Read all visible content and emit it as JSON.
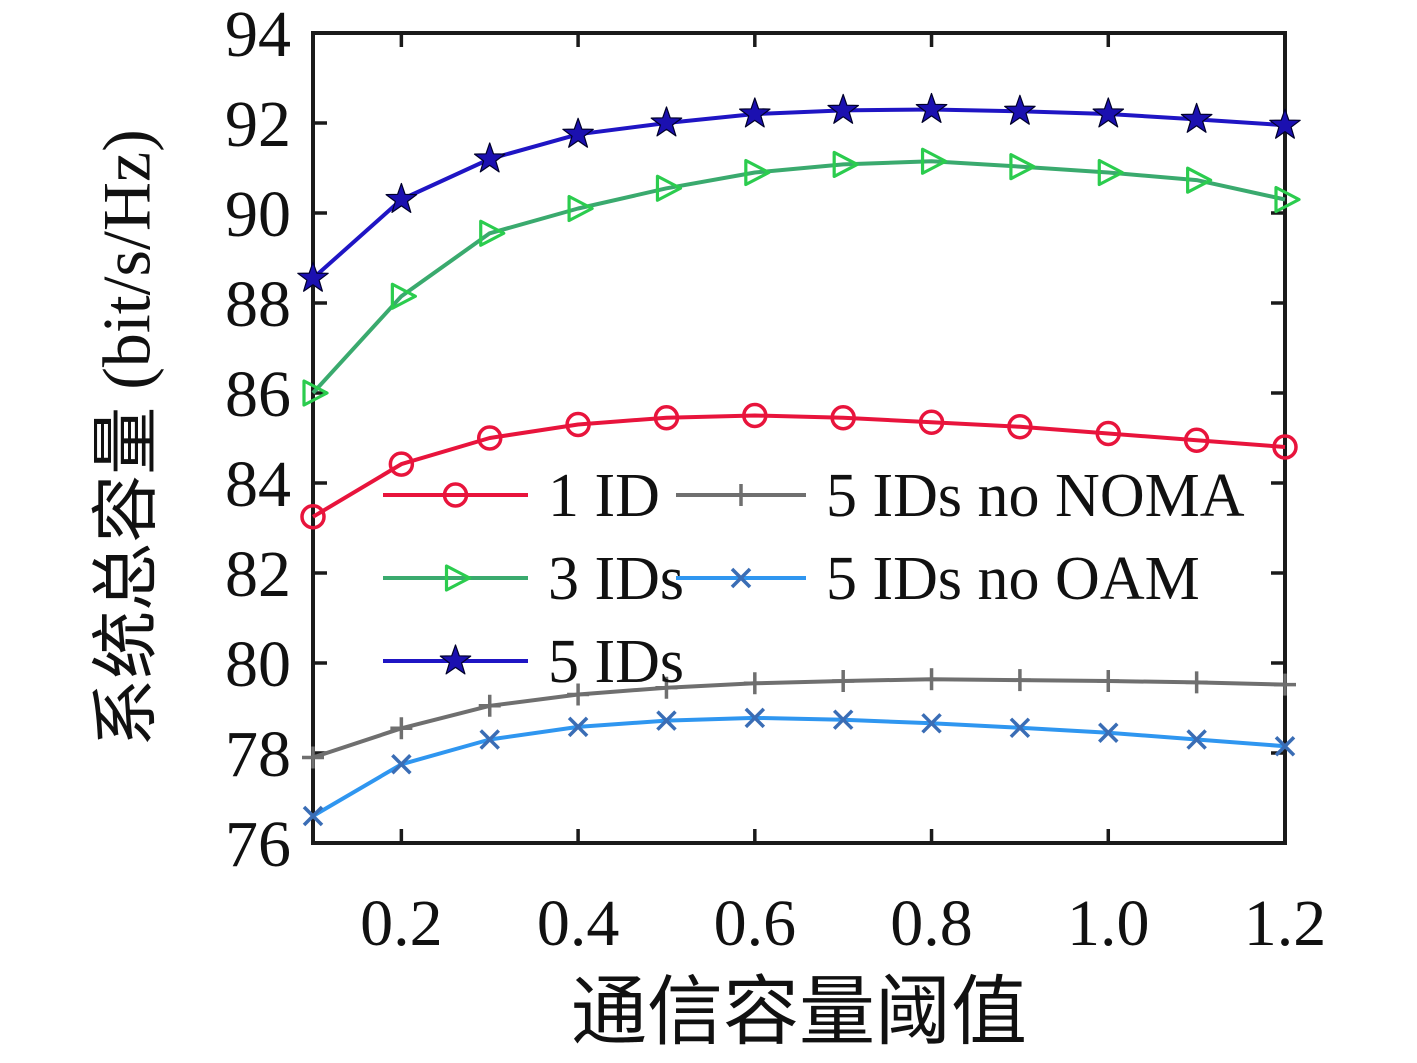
{
  "figure": {
    "xlabel": "通信容量阈值",
    "ylabel": "系统总容量 (bit/s/Hz)"
  },
  "chart_data": {
    "type": "line",
    "title": "",
    "xlabel": "通信容量阈值",
    "ylabel": "系统总容量 (bit/s/Hz)",
    "x": [
      0.1,
      0.2,
      0.3,
      0.4,
      0.5,
      0.6,
      0.7,
      0.8,
      0.9,
      1.0,
      1.1,
      1.2
    ],
    "xlim": [
      0.1,
      1.2
    ],
    "ylim": [
      76,
      94
    ],
    "xticks": {
      "values": [
        0.2,
        0.4,
        0.6,
        0.8,
        1.0,
        1.2
      ],
      "labels": [
        "0.2",
        "0.4",
        "0.6",
        "0.8",
        "1.0",
        "1.2"
      ]
    },
    "yticks": {
      "values": [
        76,
        78,
        80,
        82,
        84,
        86,
        88,
        90,
        92,
        94
      ],
      "labels": [
        "76",
        "78",
        "80",
        "82",
        "84",
        "86",
        "88",
        "90",
        "92",
        "94"
      ]
    },
    "grid": false,
    "frame": true,
    "legend_position": "inside-center",
    "series": [
      {
        "name": "1 ID",
        "marker": "circle",
        "color": "#e8143c",
        "marker_color": "#e8143c",
        "values": [
          83.25,
          84.42,
          85.0,
          85.3,
          85.45,
          85.5,
          85.45,
          85.35,
          85.25,
          85.1,
          84.95,
          84.8
        ]
      },
      {
        "name": "3 IDs",
        "marker": "triangle-right",
        "color": "#3aaa6e",
        "marker_color": "#2bcc4e",
        "values": [
          86.0,
          88.15,
          89.55,
          90.1,
          90.55,
          90.9,
          91.08,
          91.15,
          91.03,
          90.9,
          90.73,
          90.3
        ]
      },
      {
        "name": "5 IDs",
        "marker": "star",
        "color": "#1f15c4",
        "marker_color": "#1b10b0",
        "values": [
          88.55,
          90.3,
          91.2,
          91.75,
          92.0,
          92.2,
          92.28,
          92.3,
          92.26,
          92.2,
          92.08,
          91.95
        ]
      },
      {
        "name": "5 IDs no NOMA",
        "marker": "plus",
        "color": "#6f6f6f",
        "marker_color": "#6f6f6f",
        "values": [
          77.9,
          78.55,
          79.05,
          79.3,
          79.45,
          79.55,
          79.6,
          79.64,
          79.62,
          79.6,
          79.57,
          79.52
        ]
      },
      {
        "name": "5 IDs no OAM",
        "marker": "x",
        "color": "#2f96f0",
        "marker_color": "#3a6db5",
        "values": [
          76.6,
          77.75,
          78.3,
          78.58,
          78.72,
          78.78,
          78.74,
          78.66,
          78.56,
          78.45,
          78.3,
          78.15
        ]
      }
    ],
    "legend": {
      "columns": [
        {
          "series": [
            0,
            1,
            2
          ]
        },
        {
          "series": [
            3,
            4
          ]
        }
      ]
    }
  },
  "style": {
    "axis_color": "#1a1a1a",
    "background": "#ffffff"
  }
}
